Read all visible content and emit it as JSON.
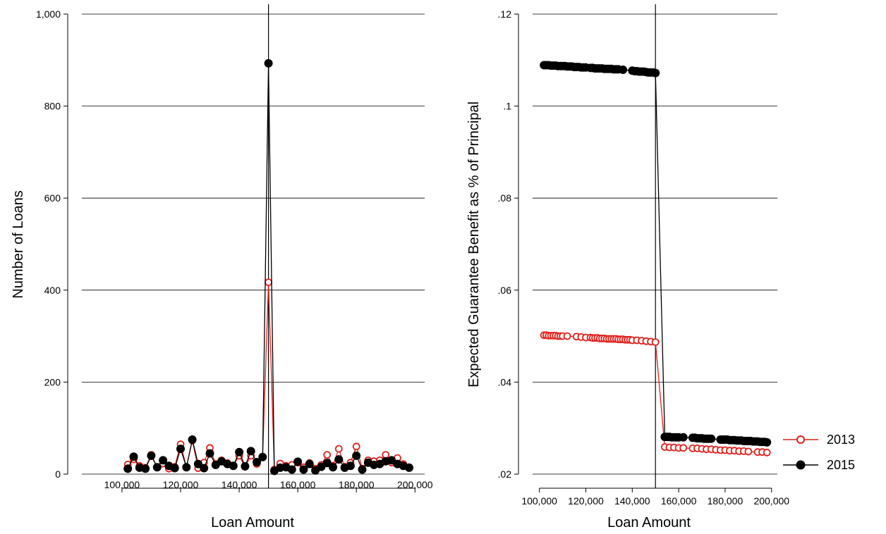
{
  "chart_data": [
    {
      "type": "line",
      "xlabel": "Loan Amount",
      "ylabel": "Number of Loans",
      "xlim": [
        100000,
        200000
      ],
      "ylim": [
        0,
        1000
      ],
      "xticks": [
        100000,
        120000,
        140000,
        160000,
        180000,
        200000
      ],
      "xtick_labels": [
        "100,000",
        "120,000",
        "140,000",
        "160,000",
        "180,000",
        "200,000"
      ],
      "yticks": [
        0,
        200,
        400,
        600,
        800,
        1000
      ],
      "ytick_labels": [
        "0",
        "200",
        "400",
        "600",
        "800",
        "1,000"
      ],
      "grid": true,
      "vline": 150000,
      "x": [
        102000,
        104000,
        106000,
        108000,
        110000,
        112000,
        114000,
        116000,
        118000,
        120000,
        122000,
        124000,
        126000,
        128000,
        130000,
        132000,
        134000,
        136000,
        138000,
        140000,
        142000,
        144000,
        146000,
        148000,
        150000,
        152000,
        154000,
        156000,
        158000,
        160000,
        162000,
        164000,
        166000,
        168000,
        170000,
        172000,
        174000,
        176000,
        178000,
        180000,
        182000,
        184000,
        186000,
        188000,
        190000,
        192000,
        194000,
        196000,
        198000
      ],
      "series": [
        {
          "name": "2013",
          "color": "#e0201b",
          "marker": "hollow-circle",
          "values": [
            21,
            32,
            18,
            14,
            42,
            15,
            23,
            12,
            16,
            65,
            15,
            73,
            13,
            25,
            57,
            22,
            30,
            24,
            19,
            40,
            16,
            40,
            22,
            38,
            417,
            10,
            23,
            18,
            20,
            25,
            15,
            24,
            12,
            20,
            42,
            18,
            55,
            16,
            25,
            60,
            12,
            30,
            28,
            30,
            42,
            25,
            35,
            22,
            15
          ]
        },
        {
          "name": "2015",
          "color": "#000000",
          "marker": "filled-circle",
          "values": [
            12,
            38,
            14,
            12,
            40,
            15,
            30,
            18,
            13,
            55,
            15,
            75,
            22,
            13,
            45,
            20,
            28,
            22,
            18,
            48,
            17,
            50,
            26,
            37,
            893,
            7,
            14,
            15,
            10,
            27,
            10,
            22,
            8,
            16,
            24,
            15,
            32,
            14,
            18,
            40,
            10,
            25,
            20,
            22,
            28,
            30,
            22,
            18,
            14
          ]
        }
      ]
    },
    {
      "type": "line",
      "xlabel": "Loan Amount",
      "ylabel": "Expected Guarantee Benefit as % of Principal",
      "xlim": [
        100000,
        200000
      ],
      "ylim": [
        0.02,
        0.12
      ],
      "xticks": [
        100000,
        120000,
        140000,
        160000,
        180000,
        200000
      ],
      "xtick_labels": [
        "100,000",
        "120,000",
        "140,000",
        "160,000",
        "180,000",
        "200,000"
      ],
      "yticks": [
        0.02,
        0.04,
        0.06,
        0.08,
        0.1,
        0.12
      ],
      "ytick_labels": [
        ".02",
        ".04",
        ".06",
        ".08",
        ".1",
        ".12"
      ],
      "grid": true,
      "vline": 150000,
      "x": [
        102000,
        103000,
        104000,
        105000,
        106000,
        107000,
        108000,
        109000,
        110000,
        111000,
        112000,
        113000,
        114000,
        115000,
        116000,
        117000,
        118000,
        119000,
        120000,
        121000,
        122000,
        123000,
        124000,
        125000,
        126000,
        127000,
        128000,
        129000,
        130000,
        131000,
        132000,
        133000,
        134000,
        135000,
        136000,
        137000,
        138000,
        139000,
        140000,
        141000,
        142000,
        143000,
        144000,
        145000,
        146000,
        147000,
        148000,
        149000,
        150000,
        151000,
        152000,
        153000,
        154000,
        155000,
        156000,
        157000,
        158000,
        159000,
        160000,
        161000,
        162000,
        163000,
        164000,
        165000,
        166000,
        167000,
        168000,
        169000,
        170000,
        171000,
        172000,
        173000,
        174000,
        175000,
        176000,
        177000,
        178000,
        179000,
        180000,
        181000,
        182000,
        183000,
        184000,
        185000,
        186000,
        187000,
        188000,
        189000,
        190000,
        191000,
        192000,
        193000,
        194000,
        195000,
        196000,
        197000,
        198000
      ],
      "series": [
        {
          "name": "2013",
          "color": "#e0201b",
          "marker": "hollow-circle",
          "x": [
            102000,
            103000,
            104000,
            105000,
            106000,
            107000,
            108000,
            109000,
            110000,
            112000,
            116000,
            118000,
            120000,
            122000,
            123000,
            124000,
            125000,
            126000,
            127000,
            128000,
            129000,
            130000,
            131000,
            132000,
            133000,
            134000,
            135000,
            136000,
            137000,
            138000,
            139000,
            140000,
            142000,
            144000,
            146000,
            148000,
            150000,
            154000,
            156000,
            158000,
            160000,
            162000,
            166000,
            168000,
            170000,
            172000,
            174000,
            176000,
            178000,
            180000,
            182000,
            184000,
            186000,
            188000,
            190000,
            194000,
            196000,
            198000
          ],
          "values": [
            0.0502,
            0.0502,
            0.0501,
            0.0501,
            0.0501,
            0.0501,
            0.05,
            0.05,
            0.05,
            0.05,
            0.0499,
            0.0498,
            0.0497,
            0.0497,
            0.0496,
            0.0496,
            0.0496,
            0.0495,
            0.0495,
            0.0495,
            0.0494,
            0.0494,
            0.0494,
            0.0494,
            0.0494,
            0.0493,
            0.0493,
            0.0493,
            0.0492,
            0.0492,
            0.0492,
            0.0491,
            0.0491,
            0.049,
            0.0489,
            0.0488,
            0.0487,
            0.0259,
            0.0258,
            0.0258,
            0.0257,
            0.0257,
            0.0256,
            0.0256,
            0.0255,
            0.0254,
            0.0254,
            0.0253,
            0.0252,
            0.0252,
            0.0251,
            0.0251,
            0.025,
            0.025,
            0.0249,
            0.0248,
            0.0248,
            0.0247
          ]
        },
        {
          "name": "2015",
          "color": "#000000",
          "marker": "filled-circle",
          "x": [
            102000,
            103000,
            104000,
            105000,
            106000,
            107000,
            108000,
            109000,
            110000,
            111000,
            112000,
            113000,
            114000,
            115000,
            116000,
            117000,
            118000,
            119000,
            120000,
            122000,
            123000,
            124000,
            125000,
            126000,
            127000,
            128000,
            129000,
            130000,
            131000,
            132000,
            133000,
            134000,
            136000,
            140000,
            141000,
            142000,
            143000,
            144000,
            145000,
            146000,
            147000,
            148000,
            149000,
            150000,
            154000,
            155000,
            156000,
            157000,
            158000,
            159000,
            160000,
            162000,
            166000,
            167000,
            168000,
            169000,
            170000,
            171000,
            172000,
            173000,
            174000,
            178000,
            179000,
            180000,
            181000,
            182000,
            183000,
            184000,
            185000,
            186000,
            187000,
            188000,
            189000,
            190000,
            191000,
            192000,
            193000,
            194000,
            195000,
            196000,
            197000,
            198000
          ],
          "values": [
            0.1089,
            0.1089,
            0.1089,
            0.1088,
            0.1088,
            0.1088,
            0.1087,
            0.1087,
            0.1087,
            0.1087,
            0.1086,
            0.1086,
            0.1086,
            0.1085,
            0.1085,
            0.1085,
            0.1084,
            0.1084,
            0.1084,
            0.1083,
            0.1083,
            0.1082,
            0.1082,
            0.1082,
            0.1082,
            0.1081,
            0.1081,
            0.1081,
            0.1081,
            0.108,
            0.108,
            0.108,
            0.1079,
            0.1077,
            0.1076,
            0.1076,
            0.1075,
            0.1075,
            0.1075,
            0.1074,
            0.1073,
            0.1073,
            0.1073,
            0.1072,
            0.0281,
            0.0281,
            0.0281,
            0.028,
            0.028,
            0.028,
            0.028,
            0.028,
            0.0279,
            0.0279,
            0.0278,
            0.0278,
            0.0278,
            0.0277,
            0.0277,
            0.0277,
            0.0277,
            0.0275,
            0.0275,
            0.0275,
            0.0275,
            0.0274,
            0.0274,
            0.0274,
            0.0273,
            0.0273,
            0.0273,
            0.0272,
            0.0272,
            0.0272,
            0.0272,
            0.0271,
            0.0271,
            0.0271,
            0.027,
            0.027,
            0.027,
            0.0269
          ]
        }
      ]
    }
  ],
  "legend": {
    "placement": "right",
    "items": [
      {
        "label": "2013",
        "color": "#e0201b",
        "marker": "hollow-circle"
      },
      {
        "label": "2015",
        "color": "#000000",
        "marker": "filled-circle"
      }
    ]
  }
}
